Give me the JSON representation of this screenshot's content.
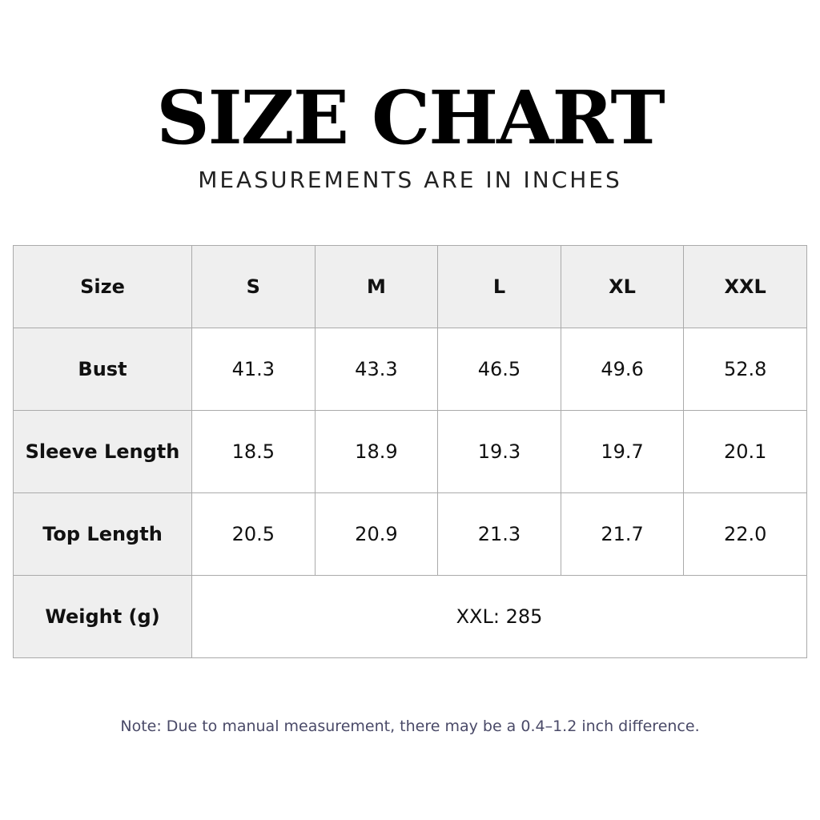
{
  "header": {
    "title": "SIZE CHART",
    "subtitle": "MEASUREMENTS ARE IN INCHES"
  },
  "table": {
    "columns": [
      "Size",
      "S",
      "M",
      "L",
      "XL",
      "XXL"
    ],
    "rows": [
      [
        "Bust",
        "41.3",
        "43.3",
        "46.5",
        "49.6",
        "52.8"
      ],
      [
        "Sleeve Length",
        "18.5",
        "18.9",
        "19.3",
        "19.7",
        "20.1"
      ],
      [
        "Top Length",
        "20.5",
        "20.9",
        "21.3",
        "21.7",
        "22.0"
      ],
      [
        "Weight (g)",
        "XXL: 285"
      ]
    ]
  },
  "note": "Note: Due to manual measurement, there may be a 0.4–1.2 inch difference."
}
